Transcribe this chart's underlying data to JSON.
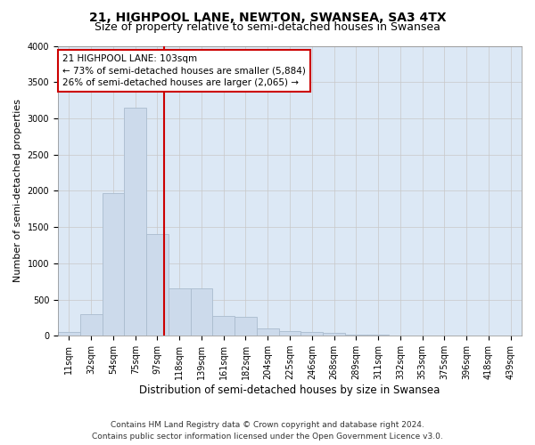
{
  "title": "21, HIGHPOOL LANE, NEWTON, SWANSEA, SA3 4TX",
  "subtitle": "Size of property relative to semi-detached houses in Swansea",
  "xlabel": "Distribution of semi-detached houses by size in Swansea",
  "ylabel": "Number of semi-detached properties",
  "footer_line1": "Contains HM Land Registry data © Crown copyright and database right 2024.",
  "footer_line2": "Contains public sector information licensed under the Open Government Licence v3.0.",
  "annotation_title": "21 HIGHPOOL LANE: 103sqm",
  "annotation_line1": "← 73% of semi-detached houses are smaller (5,884)",
  "annotation_line2": "26% of semi-detached houses are larger (2,065) →",
  "property_size": 103,
  "bar_labels": [
    "11sqm",
    "32sqm",
    "54sqm",
    "75sqm",
    "97sqm",
    "118sqm",
    "139sqm",
    "161sqm",
    "182sqm",
    "204sqm",
    "225sqm",
    "246sqm",
    "268sqm",
    "289sqm",
    "311sqm",
    "332sqm",
    "353sqm",
    "375sqm",
    "396sqm",
    "418sqm",
    "439sqm"
  ],
  "bar_values": [
    50,
    300,
    1970,
    3150,
    1400,
    650,
    650,
    270,
    265,
    100,
    70,
    48,
    38,
    18,
    10,
    5,
    3,
    2,
    1,
    1,
    1
  ],
  "bar_color": "#ccdaeb",
  "bar_edgecolor": "#aabcce",
  "line_color": "#cc0000",
  "grid_color": "#c8c8c8",
  "plot_bg_color": "#dce8f5",
  "ylim": [
    0,
    4000
  ],
  "yticks": [
    0,
    500,
    1000,
    1500,
    2000,
    2500,
    3000,
    3500,
    4000
  ],
  "background_color": "#ffffff",
  "annotation_box_color": "#ffffff",
  "annotation_box_edgecolor": "#cc0000",
  "title_fontsize": 10,
  "subtitle_fontsize": 9,
  "xlabel_fontsize": 8.5,
  "ylabel_fontsize": 8,
  "tick_fontsize": 7,
  "annotation_fontsize": 7.5,
  "footer_fontsize": 6.5
}
